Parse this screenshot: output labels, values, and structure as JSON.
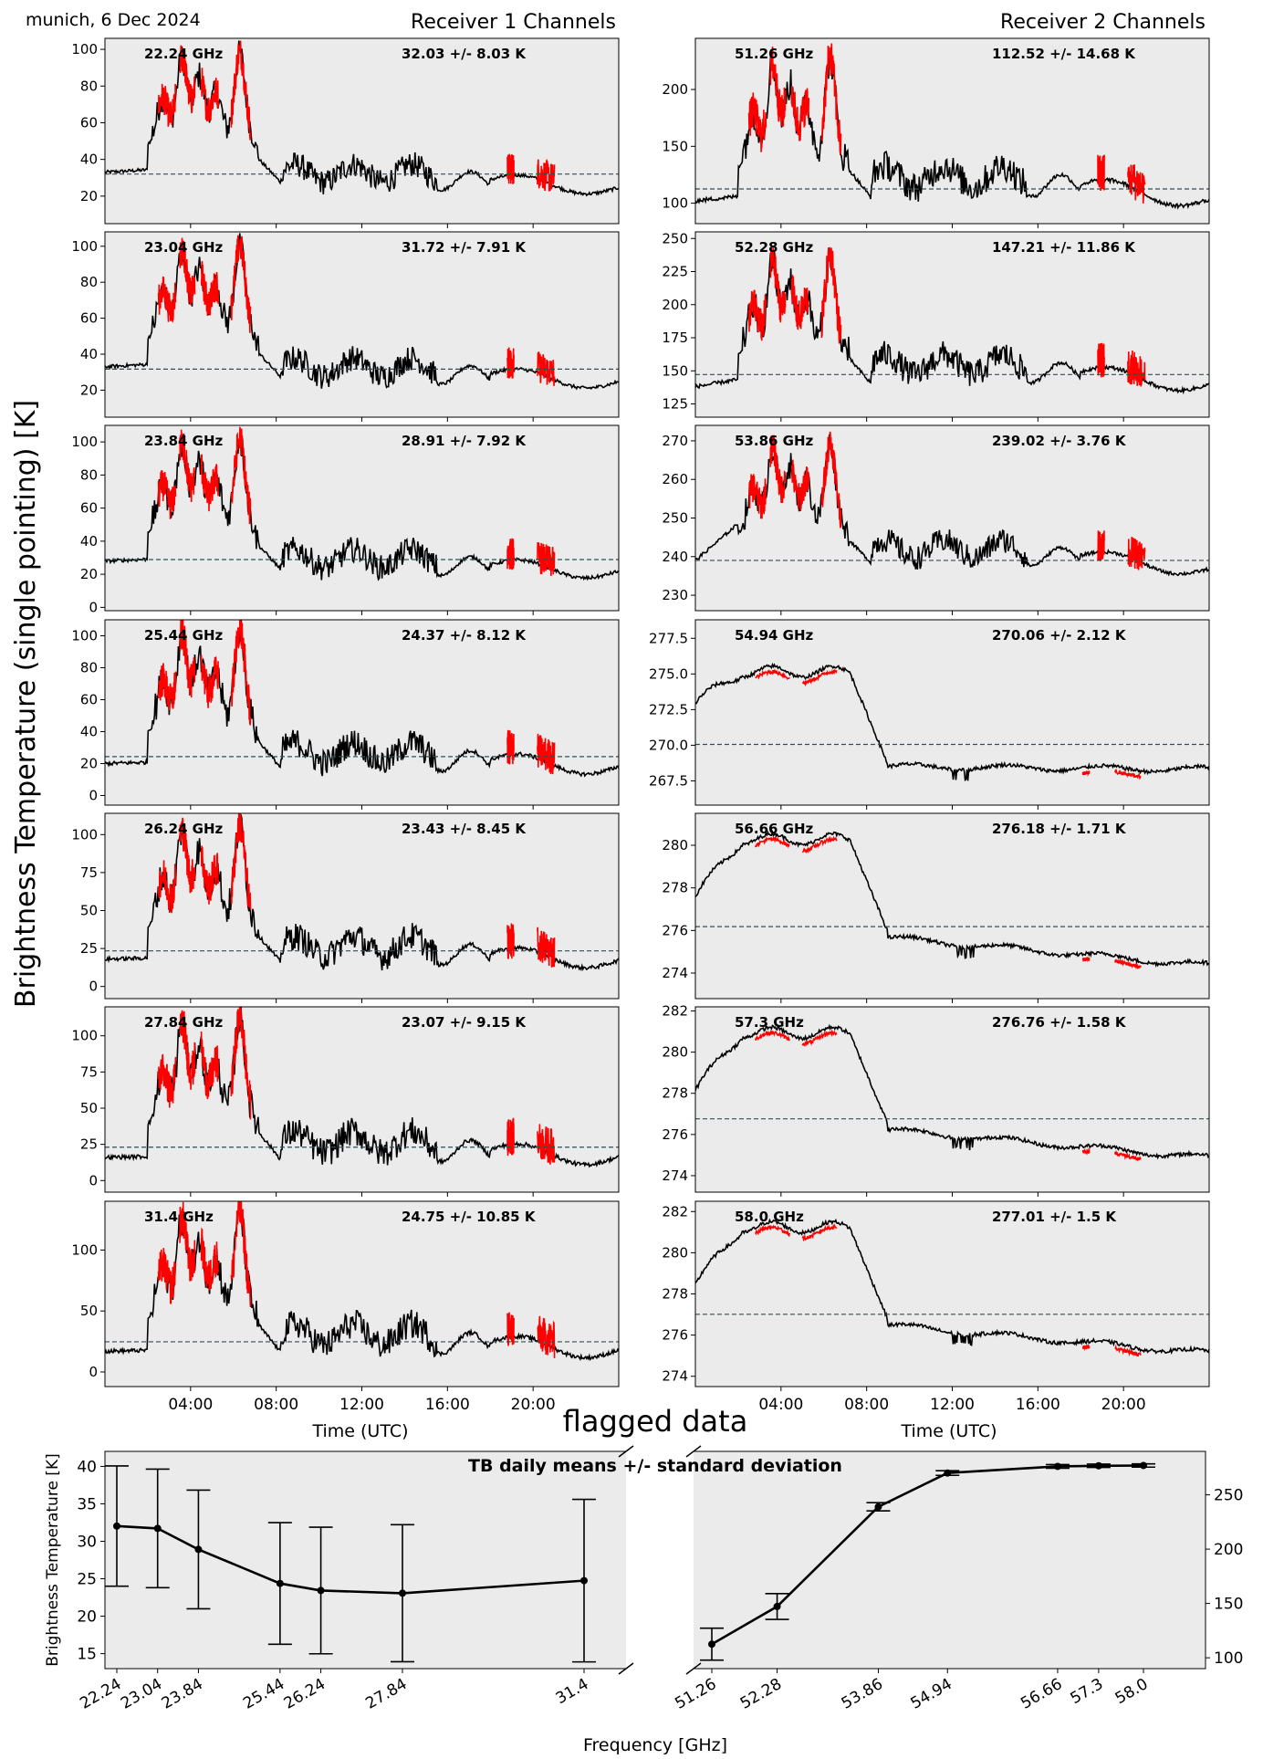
{
  "header": {
    "site_date": "munich, 6 Dec 2024",
    "receiver1_title": "Receiver 1 Channels",
    "receiver2_title": "Receiver 2 Channels",
    "ylabel": "Brightness Temperature (single pointing) [K]",
    "xlabel_left": "Time (UTC)",
    "xlabel_right": "Time (UTC)",
    "flag_label": "flagged data"
  },
  "colors": {
    "panel_bg": "#ebebeb",
    "series": "#000000",
    "flagged": "#ff0000",
    "mean_line": "#2f4f4f",
    "label_text": "#2f4f4f",
    "flag_text": "#ff0000"
  },
  "time_ticks": [
    "04:00",
    "08:00",
    "12:00",
    "16:00",
    "20:00"
  ],
  "chart_data": [
    {
      "type": "line",
      "receiver": 1,
      "panels": [
        {
          "freq": "22.24 GHz",
          "stats": "32.03 +/- 8.03 K",
          "mean": 32.03,
          "ylim": [
            5,
            106
          ],
          "yticks": [
            20,
            40,
            60,
            80,
            100
          ],
          "base": 33,
          "night": 24,
          "peak": 95,
          "end": 23
        },
        {
          "freq": "23.04 GHz",
          "stats": "31.72 +/- 7.91 K",
          "mean": 31.72,
          "ylim": [
            5,
            108
          ],
          "yticks": [
            20,
            40,
            60,
            80,
            100
          ],
          "base": 33,
          "night": 24,
          "peak": 97,
          "end": 23
        },
        {
          "freq": "23.84 GHz",
          "stats": "28.91 +/- 7.92 K",
          "mean": 28.91,
          "ylim": [
            -2,
            110
          ],
          "yticks": [
            0,
            20,
            40,
            60,
            80,
            100
          ],
          "base": 28,
          "night": 20,
          "peak": 98,
          "end": 20
        },
        {
          "freq": "25.44 GHz",
          "stats": "24.37 +/- 8.12 K",
          "mean": 24.37,
          "ylim": [
            -6,
            110
          ],
          "yticks": [
            0,
            20,
            40,
            60,
            80,
            100
          ],
          "base": 20,
          "night": 16,
          "peak": 100,
          "end": 16
        },
        {
          "freq": "26.24 GHz",
          "stats": "23.43 +/- 8.45 K",
          "mean": 23.43,
          "ylim": [
            -8,
            114
          ],
          "yticks": [
            0,
            25,
            50,
            75,
            100
          ],
          "base": 18,
          "night": 15,
          "peak": 102,
          "end": 15
        },
        {
          "freq": "27.84 GHz",
          "stats": "23.07 +/- 9.15 K",
          "mean": 23.07,
          "ylim": [
            -8,
            120
          ],
          "yticks": [
            0,
            25,
            50,
            75,
            100
          ],
          "base": 16,
          "night": 14,
          "peak": 108,
          "end": 14
        },
        {
          "freq": "31.4 GHz",
          "stats": "24.75 +/- 10.85 K",
          "mean": 24.75,
          "ylim": [
            -12,
            140
          ],
          "yticks": [
            0,
            50,
            100
          ],
          "base": 17,
          "night": 16,
          "peak": 125,
          "end": 15
        }
      ]
    },
    {
      "type": "line",
      "receiver": 2,
      "panels": [
        {
          "freq": "51.26 GHz",
          "stats": "112.52 +/- 14.68 K",
          "mean": 112.52,
          "ylim": [
            82,
            245
          ],
          "yticks": [
            100,
            150,
            200
          ],
          "base": 102,
          "night": 107,
          "peak": 222,
          "end": 100
        },
        {
          "freq": "52.28 GHz",
          "stats": "147.21 +/- 11.86 K",
          "mean": 147.21,
          "ylim": [
            115,
            255
          ],
          "yticks": [
            125,
            150,
            175,
            200,
            225,
            250
          ],
          "base": 138,
          "night": 142,
          "peak": 232,
          "end": 137
        },
        {
          "freq": "53.86 GHz",
          "stats": "239.02 +/- 3.76 K",
          "mean": 239.02,
          "ylim": [
            226,
            274
          ],
          "yticks": [
            230,
            240,
            250,
            260,
            270
          ],
          "base": 239,
          "night": 238,
          "peak": 268,
          "end": 236
        },
        {
          "freq": "54.94 GHz",
          "stats": "270.06 +/- 2.12 K",
          "mean": 270.06,
          "ylim": [
            265.8,
            278.8
          ],
          "yticks": [
            267.5,
            270.0,
            272.5,
            275.0,
            277.5
          ],
          "smooth": true
        },
        {
          "freq": "56.66 GHz",
          "stats": "276.18 +/- 1.71 K",
          "mean": 276.18,
          "ylim": [
            272.8,
            281.5
          ],
          "yticks": [
            274,
            276,
            278,
            280
          ],
          "smooth": true
        },
        {
          "freq": "57.3 GHz",
          "stats": "276.76 +/- 1.58 K",
          "mean": 276.76,
          "ylim": [
            273.2,
            282.2
          ],
          "yticks": [
            274,
            276,
            278,
            280,
            282
          ],
          "smooth": true
        },
        {
          "freq": "58.0 GHz",
          "stats": "277.01 +/- 1.5 K",
          "mean": 277.01,
          "ylim": [
            273.5,
            282.5
          ],
          "yticks": [
            274,
            276,
            278,
            280,
            282
          ],
          "smooth": true
        }
      ]
    },
    {
      "type": "line",
      "title": "TB daily means +/- standard deviation",
      "xlabel": "Frequency [GHz]",
      "ylabel": "Brightness Temperature [K]",
      "left_axis": {
        "ylim": [
          13,
          42
        ],
        "yticks": [
          15,
          20,
          25,
          30,
          35,
          40
        ]
      },
      "right_axis": {
        "ylim": [
          90,
          290
        ],
        "yticks": [
          100,
          150,
          200,
          250
        ]
      },
      "receiver1": {
        "x": [
          22.24,
          23.04,
          23.84,
          25.44,
          26.24,
          27.84,
          31.4
        ],
        "labels": [
          "22.24",
          "23.04",
          "23.84",
          "25.44",
          "26.24",
          "27.84",
          "31.4"
        ],
        "y": [
          32.03,
          31.72,
          28.91,
          24.37,
          23.43,
          23.07,
          24.75
        ],
        "err": [
          8.03,
          7.91,
          7.92,
          8.12,
          8.45,
          9.15,
          10.85
        ]
      },
      "receiver2": {
        "x": [
          51.26,
          52.28,
          53.86,
          54.94,
          56.66,
          57.3,
          58.0
        ],
        "labels": [
          "51.26",
          "52.28",
          "53.86",
          "54.94",
          "56.66",
          "57.3",
          "58.0"
        ],
        "y": [
          112.52,
          147.21,
          239.02,
          270.06,
          276.18,
          276.76,
          277.01
        ],
        "err": [
          14.68,
          11.86,
          3.76,
          2.12,
          1.71,
          1.58,
          1.5
        ]
      }
    }
  ]
}
